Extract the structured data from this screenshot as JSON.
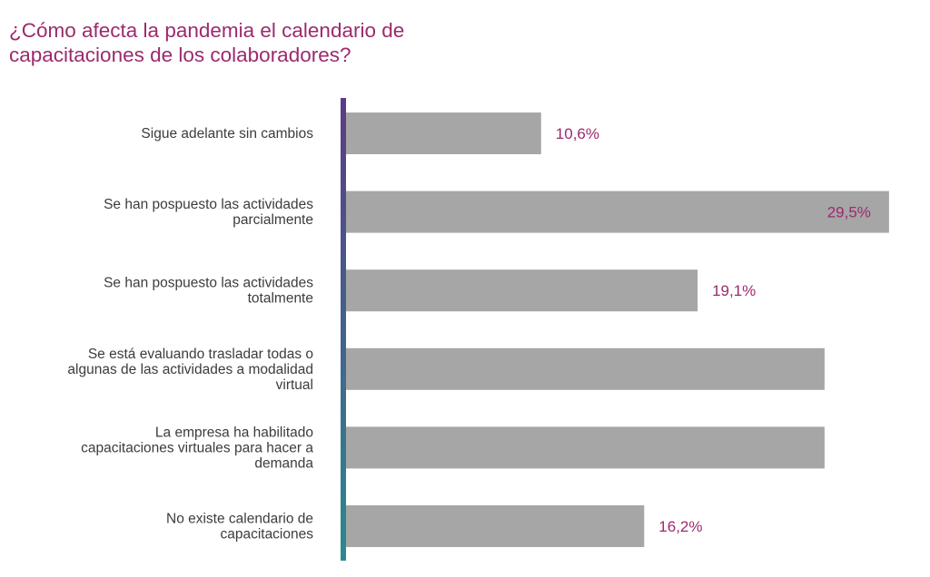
{
  "title_lines": [
    "¿Cómo afecta la pandemia el calendario de",
    "capacitaciones de los colaboradores?"
  ],
  "colors": {
    "title": "#9c2a6e",
    "bar": "#a6a6a6",
    "category_label": "#3c3c3c",
    "value_label": "#9c2a6e",
    "axis_top": "#5c3b86",
    "axis_bottom": "#2a8a8f"
  },
  "chart_data": {
    "type": "bar",
    "orientation": "horizontal",
    "xlim": [
      0,
      30
    ],
    "grid": false,
    "categories": [
      [
        "Sigue adelante sin cambios"
      ],
      [
        "Se han pospuesto las actividades",
        "parcialmente"
      ],
      [
        "Se han pospuesto las actividades",
        "totalmente"
      ],
      [
        "Se está evaluando trasladar todas o",
        "algunas de las actividades a modalidad",
        "virtual"
      ],
      [
        "La empresa ha habilitado",
        "capacitaciones virtuales para hacer a",
        "demanda"
      ],
      [
        "No existe calendario de",
        "capacitaciones"
      ]
    ],
    "values": [
      10.6,
      29.5,
      19.1,
      26.0,
      26.0,
      16.2
    ],
    "value_labels": [
      "10,6%",
      "29,5%",
      "19,1%",
      "",
      "",
      "16,2%"
    ],
    "value_label_inside": [
      false,
      true,
      false,
      false,
      false,
      false
    ]
  }
}
